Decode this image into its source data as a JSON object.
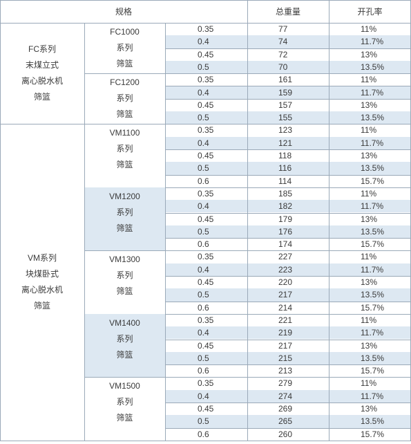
{
  "header": {
    "spec": "规格",
    "weight": "总重量",
    "open_rate": "开孔率"
  },
  "groups": [
    {
      "lines": [
        "FC系列",
        "末煤立式",
        "离心脱水机",
        "筛篮"
      ],
      "subgroups": [
        {
          "lines": [
            "FC1000",
            "系列",
            "筛篮"
          ],
          "shaded": false,
          "rows": [
            {
              "spec": "0.35",
              "weight": "77",
              "rate": "11%"
            },
            {
              "spec": "0.4",
              "weight": "74",
              "rate": "11.7%"
            },
            {
              "spec": "0.45",
              "weight": "72",
              "rate": "13%"
            },
            {
              "spec": "0.5",
              "weight": "70",
              "rate": "13.5%"
            }
          ]
        },
        {
          "lines": [
            "FC1200",
            "系列",
            "筛篮"
          ],
          "shaded": false,
          "rows": [
            {
              "spec": "0.35",
              "weight": "161",
              "rate": "11%"
            },
            {
              "spec": "0.4",
              "weight": "159",
              "rate": "11.7%"
            },
            {
              "spec": "0.45",
              "weight": "157",
              "rate": "13%"
            },
            {
              "spec": "0.5",
              "weight": "155",
              "rate": "13.5%"
            }
          ]
        }
      ]
    },
    {
      "lines": [
        "VM系列",
        "块煤卧式",
        "离心脱水机",
        "筛篮"
      ],
      "subgroups": [
        {
          "lines": [
            "VM1100",
            "系列",
            "筛篮"
          ],
          "shaded": false,
          "rows": [
            {
              "spec": "0.35",
              "weight": "123",
              "rate": "11%"
            },
            {
              "spec": "0.4",
              "weight": "121",
              "rate": "11.7%"
            },
            {
              "spec": "0.45",
              "weight": "118",
              "rate": "13%"
            },
            {
              "spec": "0.5",
              "weight": "116",
              "rate": "13.5%"
            },
            {
              "spec": "0.6",
              "weight": "114",
              "rate": "15.7%"
            }
          ]
        },
        {
          "lines": [
            "VM1200",
            "系列",
            "筛篮"
          ],
          "shaded": true,
          "rows": [
            {
              "spec": "0.35",
              "weight": "185",
              "rate": "11%"
            },
            {
              "spec": "0.4",
              "weight": "182",
              "rate": "11.7%"
            },
            {
              "spec": "0.45",
              "weight": "179",
              "rate": "13%"
            },
            {
              "spec": "0.5",
              "weight": "176",
              "rate": "13.5%"
            },
            {
              "spec": "0.6",
              "weight": "174",
              "rate": "15.7%"
            }
          ]
        },
        {
          "lines": [
            "VM1300",
            "系列",
            "筛篮"
          ],
          "shaded": false,
          "rows": [
            {
              "spec": "0.35",
              "weight": "227",
              "rate": "11%"
            },
            {
              "spec": "0.4",
              "weight": "223",
              "rate": "11.7%"
            },
            {
              "spec": "0.45",
              "weight": "220",
              "rate": "13%"
            },
            {
              "spec": "0.5",
              "weight": "217",
              "rate": "13.5%"
            },
            {
              "spec": "0.6",
              "weight": "214",
              "rate": "15.7%"
            }
          ]
        },
        {
          "lines": [
            "VM1400",
            "系列",
            "筛篮"
          ],
          "shaded": true,
          "rows": [
            {
              "spec": "0.35",
              "weight": "221",
              "rate": "11%"
            },
            {
              "spec": "0.4",
              "weight": "219",
              "rate": "11.7%"
            },
            {
              "spec": "0.45",
              "weight": "217",
              "rate": "13%"
            },
            {
              "spec": "0.5",
              "weight": "215",
              "rate": "13.5%"
            },
            {
              "spec": "0.6",
              "weight": "213",
              "rate": "15.7%"
            }
          ]
        },
        {
          "lines": [
            "VM1500",
            "系列",
            "筛篮"
          ],
          "shaded": false,
          "rows": [
            {
              "spec": "0.35",
              "weight": "279",
              "rate": "11%"
            },
            {
              "spec": "0.4",
              "weight": "274",
              "rate": "11.7%"
            },
            {
              "spec": "0.45",
              "weight": "269",
              "rate": "13%"
            },
            {
              "spec": "0.5",
              "weight": "265",
              "rate": "13.5%"
            },
            {
              "spec": "0.6",
              "weight": "260",
              "rate": "15.7%"
            }
          ]
        }
      ]
    }
  ]
}
